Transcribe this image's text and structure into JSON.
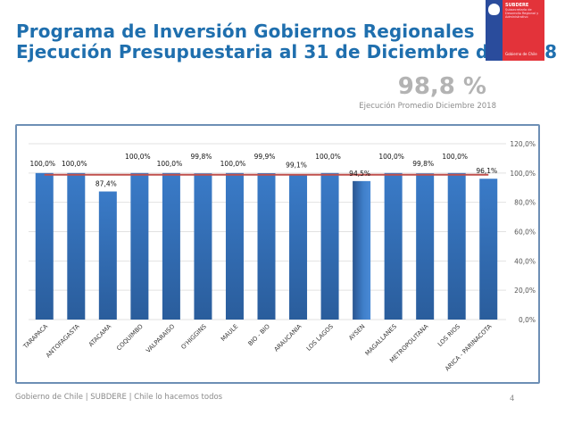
{
  "header": {
    "title_line1": "Programa de Inversión Gobiernos Regionales",
    "title_line2": "Ejecución Presupuestaria al 31 de Diciembre de 2018"
  },
  "logo": {
    "org": "SUBDERE",
    "subtitle": "Subsecretaría de Desarrollo Regional y Administrativo",
    "footer": "Gobierno de Chile"
  },
  "summary": {
    "value": "98,8 %",
    "label": "Ejecución Promedio Diciembre 2018"
  },
  "footer": {
    "text": "Gobierno de Chile | SUBDERE | Chile lo hacemos todos",
    "page_number": "4"
  },
  "chart_data": {
    "type": "bar",
    "title": "",
    "xlabel": "",
    "ylabel": "",
    "categories": [
      "TARAPACA",
      "ANTOFAGASTA",
      "ATACAMA",
      "COQUIMBO",
      "VALPARAISO",
      "O'HIGGINS",
      "MAULE",
      "BIO - BIO",
      "ARAUCANIA",
      "LOS LAGOS",
      "AYSEN",
      "MAGALLANES",
      "METROPOLITANA",
      "LOS RIOS",
      "ARICA - PARINACOTA"
    ],
    "values": [
      100.0,
      100.0,
      87.4,
      100.0,
      100.0,
      99.8,
      100.0,
      99.9,
      99.1,
      100.0,
      94.5,
      100.0,
      99.8,
      100.0,
      96.1
    ],
    "data_labels": [
      "100,0%",
      "100,0%",
      "87,4%",
      "100,0%",
      "100,0%",
      "99,8%",
      "100,0%",
      "99,9%",
      "99,1%",
      "100,0%",
      "94,5%",
      "100,0%",
      "99,8%",
      "100,0%",
      "96,1%"
    ],
    "reference_line": {
      "name": "Ejecución Promedio",
      "value": 98.8,
      "color": "#c0504d"
    },
    "ylim": [
      0,
      120
    ],
    "yticks": [
      0,
      20,
      40,
      60,
      80,
      100,
      120
    ],
    "ytick_labels": [
      "0,0%",
      "20,0%",
      "40,0%",
      "60,0%",
      "80,0%",
      "100,0%",
      "120,0%"
    ],
    "y_axis_position": "right",
    "grid": true,
    "bar_color": "#2f6db5",
    "legend": "none"
  }
}
